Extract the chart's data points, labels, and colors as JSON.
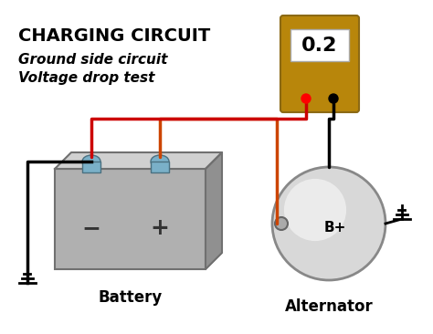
{
  "title": "CHARGING CIRCUIT",
  "subtitle_line1": "Ground side circuit",
  "subtitle_line2": "Voltage drop test",
  "meter_value": "0.2",
  "battery_label": "Battery",
  "alternator_label": "Alternator",
  "b_plus_label": "B+",
  "bg_color": "#ffffff",
  "title_color": "#000000",
  "subtitle_color": "#000000",
  "wire_color_orange": "#cc4400",
  "wire_color_black": "#000000",
  "wire_color_red": "#cc0000",
  "meter_body_color": "#b8860b",
  "meter_display_color": "#f0f0f0",
  "battery_color_light": "#c0c0c0",
  "battery_color_dark": "#909090",
  "alternator_color": "#e0e0e0",
  "ground_color": "#000000"
}
